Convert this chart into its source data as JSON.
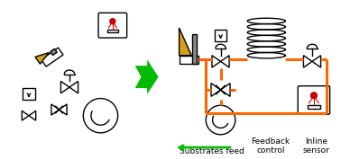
{
  "bg_color": "#ffffff",
  "orange_color": "#FF6600",
  "green_color": "#00BB00",
  "black_color": "#000000",
  "red_color": "#CC0000",
  "gold_color": "#D4A017",
  "gray_color": "#888888",
  "text_substrates": "Substrates feed",
  "text_feedback": "Feedback\ncontrol",
  "text_inline": "Inline\nsensor",
  "figsize": [
    3.78,
    1.77
  ],
  "dpi": 100
}
